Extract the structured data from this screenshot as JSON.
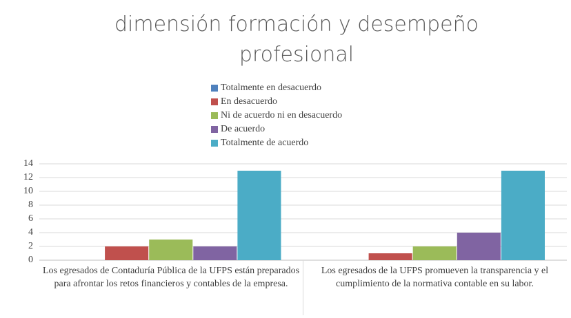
{
  "chart_data": {
    "type": "bar",
    "title": "dimensión formación y desempeño profesional",
    "categories": [
      "Los egresados de Contaduría Pública de la UFPS están preparados para afrontar los retos financieros y contables de la empresa.",
      "Los egresados de la UFPS promueven la transparencia y el cumplimiento de la normativa contable en su labor."
    ],
    "series": [
      {
        "name": "Totalmente en desacuerdo",
        "color": "#4f81bd",
        "values": [
          0,
          0
        ]
      },
      {
        "name": "En desacuerdo",
        "color": "#c0504d",
        "values": [
          2,
          1
        ]
      },
      {
        "name": "Ni de acuerdo ni en desacuerdo",
        "color": "#9bbb59",
        "values": [
          3,
          2
        ]
      },
      {
        "name": "De acuerdo",
        "color": "#8064a2",
        "values": [
          2,
          4
        ]
      },
      {
        "name": "Totalmente de acuerdo",
        "color": "#4bacc6",
        "values": [
          13,
          13
        ]
      }
    ],
    "ylim": [
      0,
      14
    ],
    "yticks": [
      0,
      2,
      4,
      6,
      8,
      10,
      12,
      14
    ],
    "grid": true,
    "legend": "top"
  }
}
